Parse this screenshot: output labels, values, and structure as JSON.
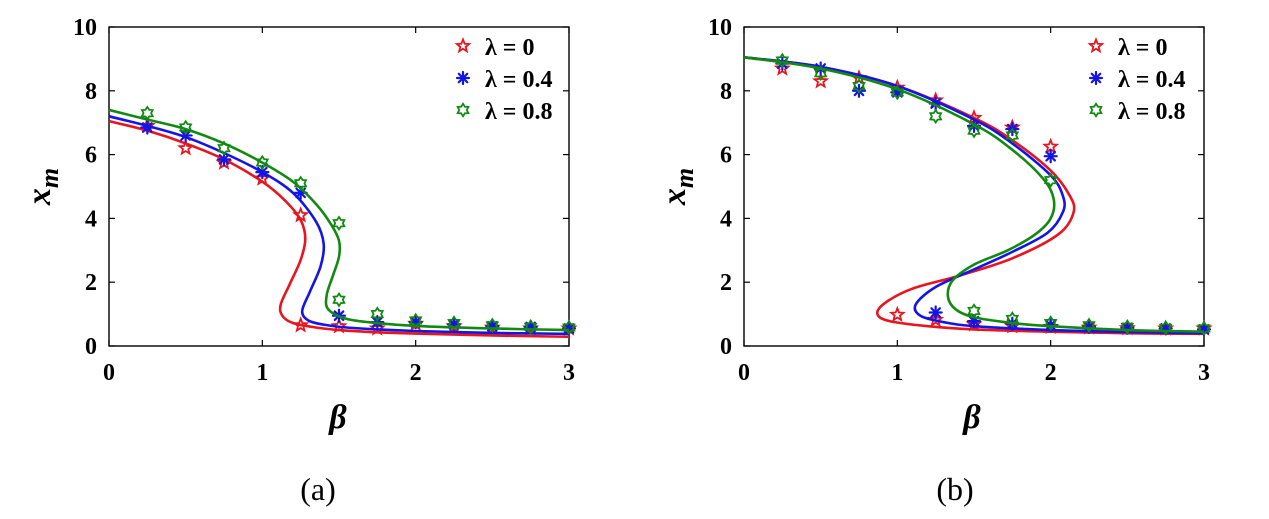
{
  "figure": {
    "captions": [
      "(a)",
      "(b)"
    ]
  },
  "colors": {
    "lambda_0": "#e8141e",
    "lambda_0_4": "#1414e6",
    "lambda_0_8": "#128a12"
  },
  "chart_data": [
    {
      "type": "line",
      "panel": "(a)",
      "xlabel": "β",
      "ylabel": "x_m",
      "xlim": [
        0,
        3
      ],
      "ylim": [
        0,
        10
      ],
      "xticks": [
        "0",
        "1",
        "2",
        "3"
      ],
      "yticks": [
        "0",
        "2",
        "4",
        "6",
        "8",
        "10"
      ],
      "grid": false,
      "legend_position": "top-right",
      "series": [
        {
          "name": "λ = 0",
          "marker": "pentagram",
          "curve": [
            [
              0,
              7.05
            ],
            [
              0.25,
              6.75
            ],
            [
              0.5,
              6.35
            ],
            [
              0.75,
              5.85
            ],
            [
              1.0,
              5.15
            ],
            [
              1.15,
              4.55
            ],
            [
              1.25,
              3.95
            ],
            [
              1.28,
              3.35
            ],
            [
              1.25,
              2.7
            ],
            [
              1.18,
              1.95
            ],
            [
              1.12,
              1.3
            ],
            [
              1.13,
              0.95
            ],
            [
              1.2,
              0.72
            ],
            [
              1.35,
              0.58
            ],
            [
              1.5,
              0.5
            ],
            [
              1.75,
              0.43
            ],
            [
              2.0,
              0.39
            ],
            [
              2.5,
              0.33
            ],
            [
              3.0,
              0.29
            ]
          ],
          "points": [
            [
              0.25,
              6.9
            ],
            [
              0.5,
              6.2
            ],
            [
              0.75,
              5.75
            ],
            [
              1.0,
              5.25
            ],
            [
              1.25,
              4.1
            ],
            [
              1.25,
              0.65
            ],
            [
              1.5,
              0.62
            ],
            [
              1.75,
              0.55
            ],
            [
              2.0,
              0.7
            ],
            [
              2.25,
              0.62
            ],
            [
              2.5,
              0.58
            ],
            [
              2.75,
              0.55
            ],
            [
              3.0,
              0.55
            ]
          ]
        },
        {
          "name": "λ = 0.4",
          "marker": "asterisk",
          "curve": [
            [
              0,
              7.2
            ],
            [
              0.25,
              6.9
            ],
            [
              0.5,
              6.55
            ],
            [
              0.75,
              6.05
            ],
            [
              1.0,
              5.45
            ],
            [
              1.2,
              4.8
            ],
            [
              1.35,
              3.9
            ],
            [
              1.4,
              3.2
            ],
            [
              1.38,
              2.5
            ],
            [
              1.31,
              1.7
            ],
            [
              1.26,
              1.1
            ],
            [
              1.3,
              0.8
            ],
            [
              1.4,
              0.67
            ],
            [
              1.55,
              0.58
            ],
            [
              1.75,
              0.52
            ],
            [
              2.0,
              0.47
            ],
            [
              2.5,
              0.41
            ],
            [
              3.0,
              0.38
            ]
          ],
          "points": [
            [
              0.25,
              6.85
            ],
            [
              0.5,
              6.6
            ],
            [
              0.75,
              5.85
            ],
            [
              1.0,
              5.45
            ],
            [
              1.25,
              4.8
            ],
            [
              1.5,
              0.95
            ],
            [
              1.75,
              0.75
            ],
            [
              2.0,
              0.75
            ],
            [
              2.25,
              0.68
            ],
            [
              2.5,
              0.62
            ],
            [
              2.75,
              0.6
            ],
            [
              3.0,
              0.55
            ]
          ]
        },
        {
          "name": "λ = 0.8",
          "marker": "hexagram",
          "curve": [
            [
              0,
              7.4
            ],
            [
              0.25,
              7.1
            ],
            [
              0.5,
              6.8
            ],
            [
              0.75,
              6.35
            ],
            [
              1.0,
              5.75
            ],
            [
              1.2,
              5.15
            ],
            [
              1.35,
              4.45
            ],
            [
              1.45,
              3.8
            ],
            [
              1.5,
              3.3
            ],
            [
              1.5,
              2.8
            ],
            [
              1.46,
              2.2
            ],
            [
              1.42,
              1.6
            ],
            [
              1.43,
              1.15
            ],
            [
              1.55,
              0.85
            ],
            [
              1.75,
              0.72
            ],
            [
              2.0,
              0.63
            ],
            [
              2.5,
              0.55
            ],
            [
              3.0,
              0.5
            ]
          ],
          "points": [
            [
              0.25,
              7.3
            ],
            [
              0.5,
              6.85
            ],
            [
              0.75,
              6.2
            ],
            [
              1.0,
              5.75
            ],
            [
              1.25,
              5.1
            ],
            [
              1.5,
              3.85
            ],
            [
              1.5,
              1.45
            ],
            [
              1.75,
              1.0
            ],
            [
              2.0,
              0.8
            ],
            [
              2.25,
              0.72
            ],
            [
              2.5,
              0.65
            ],
            [
              2.75,
              0.6
            ],
            [
              3.0,
              0.58
            ]
          ]
        }
      ]
    },
    {
      "type": "line",
      "panel": "(b)",
      "xlabel": "β",
      "ylabel": "x_m",
      "xlim": [
        0,
        3
      ],
      "ylim": [
        0,
        10
      ],
      "xticks": [
        "0",
        "1",
        "2",
        "3"
      ],
      "yticks": [
        "0",
        "2",
        "4",
        "6",
        "8",
        "10"
      ],
      "grid": false,
      "legend_position": "top-right",
      "series": [
        {
          "name": "λ = 0",
          "marker": "pentagram",
          "curve": [
            [
              0,
              9.05
            ],
            [
              0.5,
              8.75
            ],
            [
              1.0,
              8.15
            ],
            [
              1.5,
              7.15
            ],
            [
              1.75,
              6.45
            ],
            [
              2.0,
              5.5
            ],
            [
              2.12,
              4.75
            ],
            [
              2.15,
              4.2
            ],
            [
              2.05,
              3.5
            ],
            [
              1.75,
              2.75
            ],
            [
              1.4,
              2.2
            ],
            [
              1.1,
              1.8
            ],
            [
              0.92,
              1.35
            ],
            [
              0.87,
              1.0
            ],
            [
              0.95,
              0.78
            ],
            [
              1.2,
              0.62
            ],
            [
              1.5,
              0.52
            ],
            [
              2.0,
              0.45
            ],
            [
              2.5,
              0.4
            ],
            [
              3.0,
              0.38
            ]
          ],
          "points": [
            [
              0.25,
              8.7
            ],
            [
              0.5,
              8.3
            ],
            [
              0.75,
              8.4
            ],
            [
              1.0,
              8.1
            ],
            [
              1.25,
              7.7
            ],
            [
              1.5,
              7.15
            ],
            [
              1.75,
              6.85
            ],
            [
              2.0,
              6.25
            ],
            [
              1.0,
              0.98
            ],
            [
              1.25,
              0.82
            ],
            [
              1.5,
              0.68
            ],
            [
              1.75,
              0.62
            ],
            [
              2.0,
              0.6
            ],
            [
              2.25,
              0.58
            ],
            [
              2.5,
              0.56
            ],
            [
              2.75,
              0.55
            ],
            [
              3.0,
              0.55
            ]
          ]
        },
        {
          "name": "λ = 0.4",
          "marker": "asterisk",
          "curve": [
            [
              0,
              9.05
            ],
            [
              0.5,
              8.75
            ],
            [
              1.0,
              8.15
            ],
            [
              1.5,
              7.1
            ],
            [
              1.75,
              6.35
            ],
            [
              2.0,
              5.35
            ],
            [
              2.08,
              4.7
            ],
            [
              2.08,
              4.2
            ],
            [
              1.98,
              3.55
            ],
            [
              1.75,
              2.95
            ],
            [
              1.5,
              2.4
            ],
            [
              1.25,
              1.85
            ],
            [
              1.12,
              1.3
            ],
            [
              1.15,
              0.95
            ],
            [
              1.3,
              0.75
            ],
            [
              1.5,
              0.62
            ],
            [
              2.0,
              0.5
            ],
            [
              2.5,
              0.44
            ],
            [
              3.0,
              0.4
            ]
          ],
          "points": [
            [
              0.25,
              8.85
            ],
            [
              0.5,
              8.7
            ],
            [
              0.75,
              8.0
            ],
            [
              1.0,
              7.95
            ],
            [
              1.25,
              7.6
            ],
            [
              1.5,
              6.9
            ],
            [
              1.75,
              6.8
            ],
            [
              2.0,
              5.95
            ],
            [
              1.25,
              1.05
            ],
            [
              1.5,
              0.78
            ],
            [
              1.75,
              0.7
            ],
            [
              2.0,
              0.65
            ],
            [
              2.25,
              0.6
            ],
            [
              2.5,
              0.57
            ],
            [
              2.75,
              0.55
            ],
            [
              3.0,
              0.52
            ]
          ]
        },
        {
          "name": "λ = 0.8",
          "marker": "hexagram",
          "curve": [
            [
              0,
              9.05
            ],
            [
              0.5,
              8.7
            ],
            [
              1.0,
              8.05
            ],
            [
              1.5,
              6.95
            ],
            [
              1.75,
              6.15
            ],
            [
              1.95,
              5.25
            ],
            [
              2.02,
              4.6
            ],
            [
              2.0,
              4.0
            ],
            [
              1.9,
              3.5
            ],
            [
              1.72,
              3.0
            ],
            [
              1.5,
              2.55
            ],
            [
              1.36,
              2.05
            ],
            [
              1.33,
              1.55
            ],
            [
              1.38,
              1.15
            ],
            [
              1.5,
              0.9
            ],
            [
              1.75,
              0.72
            ],
            [
              2.0,
              0.62
            ],
            [
              2.5,
              0.5
            ],
            [
              3.0,
              0.45
            ]
          ],
          "points": [
            [
              0.25,
              8.95
            ],
            [
              0.5,
              8.55
            ],
            [
              0.75,
              8.15
            ],
            [
              1.0,
              7.95
            ],
            [
              1.25,
              7.2
            ],
            [
              1.5,
              6.75
            ],
            [
              1.75,
              6.6
            ],
            [
              2.0,
              5.2
            ],
            [
              1.5,
              1.1
            ],
            [
              1.75,
              0.85
            ],
            [
              2.0,
              0.72
            ],
            [
              2.25,
              0.65
            ],
            [
              2.5,
              0.6
            ],
            [
              2.75,
              0.57
            ],
            [
              3.0,
              0.55
            ]
          ]
        }
      ]
    }
  ]
}
